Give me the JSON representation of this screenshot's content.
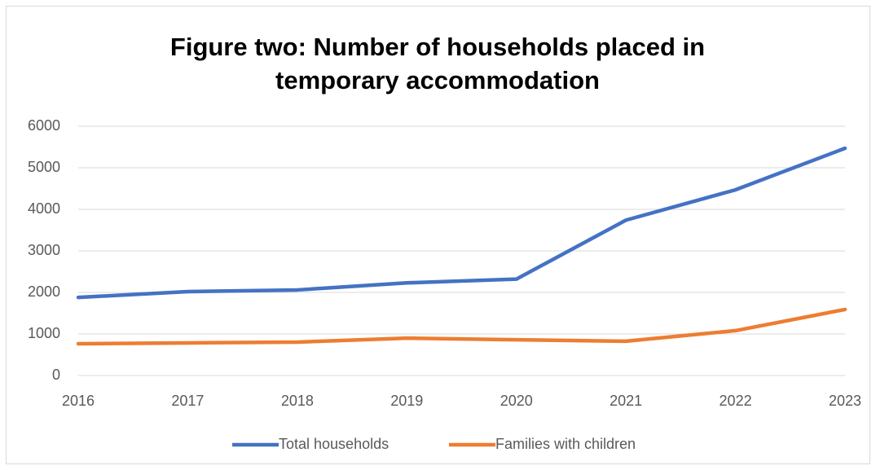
{
  "chart_data": {
    "type": "line",
    "title": [
      "Figure two: Number of households placed in",
      "temporary accommodation"
    ],
    "x": [
      2016,
      2017,
      2018,
      2019,
      2020,
      2021,
      2022,
      2023
    ],
    "xlim": [
      2016,
      2023
    ],
    "xticks": [
      2016,
      2017,
      2018,
      2019,
      2020,
      2021,
      2022,
      2023
    ],
    "ylim": [
      0,
      6000
    ],
    "yticks": [
      0,
      1000,
      2000,
      3000,
      4000,
      5000,
      6000
    ],
    "grid": true,
    "legend": "bottom",
    "series": [
      {
        "name": "Total households",
        "color": "#4472c4",
        "values": [
          1880,
          2020,
          2060,
          2230,
          2320,
          3740,
          4470,
          5470
        ]
      },
      {
        "name": "Families with children",
        "color": "#ed7d31",
        "values": [
          765,
          785,
          805,
          900,
          860,
          825,
          1080,
          1590
        ]
      }
    ]
  }
}
